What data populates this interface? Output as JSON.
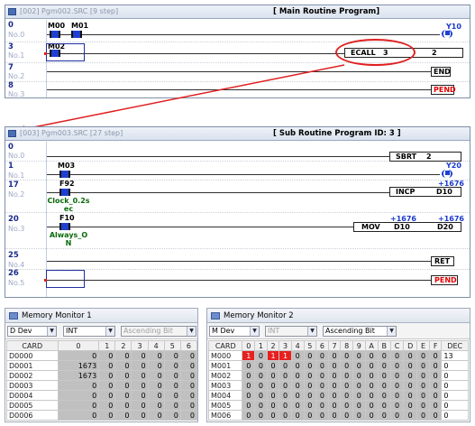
{
  "main_window": {
    "file_label": "[002] Pgm002.SRC [9 step]",
    "title": "[ Main Routine Program]",
    "rungs": [
      {
        "step": "0",
        "no": "No.0"
      },
      {
        "step": "3",
        "no": "No.1"
      },
      {
        "step": "7",
        "no": "No.2"
      },
      {
        "step": "8",
        "no": "No.3"
      }
    ],
    "contacts": {
      "m00": "M00",
      "m01": "M01",
      "m02": "M02"
    },
    "coil_y10": "Y10",
    "ecall": {
      "name": "ECALL",
      "arg1": "3",
      "arg2": "2"
    },
    "end_label": "END",
    "pend_label": "PEND"
  },
  "sub_window": {
    "file_label": "[003] Pgm003.SRC [27 step]",
    "title": "[ Sub Routine Program ID: 3 ]",
    "rungs": [
      {
        "step": "0",
        "no": "No.0"
      },
      {
        "step": "1",
        "no": "No.1"
      },
      {
        "step": "17",
        "no": "No.2"
      },
      {
        "step": "20",
        "no": "No.3"
      },
      {
        "step": "25",
        "no": "No.4"
      },
      {
        "step": "26",
        "no": "No.5"
      }
    ],
    "sbrt": {
      "name": "SBRT",
      "arg": "2"
    },
    "contacts": {
      "m03": "M03",
      "f92": "F92",
      "f10": "F10"
    },
    "f92_comment_1": "Clock_0.2s",
    "f92_comment_2": "ec",
    "f10_comment_1": "Always_O",
    "f10_comment_2": "N",
    "coil_y20": "Y20",
    "incp": {
      "value": "+1676",
      "name": "INCP",
      "operand": "D10"
    },
    "mov": {
      "name": "MOV",
      "op1_value": "+1676",
      "op1": "D10",
      "op2_value": "+1676",
      "op2": "D20"
    },
    "ret_label": "RET",
    "pend_label": "PEND"
  },
  "memory_monitor_1": {
    "title": "Memory Monitor 1",
    "device": "D Dev",
    "type": "INT",
    "order": "Ascending Bit",
    "columns": [
      "CARD",
      "0",
      "1",
      "2",
      "3",
      "4",
      "5",
      "6"
    ],
    "rows": [
      {
        "card": "D0000",
        "values": [
          "0",
          "0",
          "0",
          "0",
          "0",
          "0",
          "0"
        ]
      },
      {
        "card": "D0001",
        "values": [
          "1673",
          "0",
          "0",
          "0",
          "0",
          "0",
          "0"
        ]
      },
      {
        "card": "D0002",
        "values": [
          "1673",
          "0",
          "0",
          "0",
          "0",
          "0",
          "0"
        ]
      },
      {
        "card": "D0003",
        "values": [
          "0",
          "0",
          "0",
          "0",
          "0",
          "0",
          "0"
        ]
      },
      {
        "card": "D0004",
        "values": [
          "0",
          "0",
          "0",
          "0",
          "0",
          "0",
          "0"
        ]
      },
      {
        "card": "D0005",
        "values": [
          "0",
          "0",
          "0",
          "0",
          "0",
          "0",
          "0"
        ]
      },
      {
        "card": "D0006",
        "values": [
          "0",
          "0",
          "0",
          "0",
          "0",
          "0",
          "0"
        ]
      }
    ]
  },
  "memory_monitor_2": {
    "title": "Memory Monitor 2",
    "device": "M Dev",
    "type": "INT",
    "order": "Ascending Bit",
    "columns": [
      "CARD",
      "0",
      "1",
      "2",
      "3",
      "4",
      "5",
      "6",
      "7",
      "8",
      "9",
      "A",
      "B",
      "C",
      "D",
      "E",
      "F",
      "DEC"
    ],
    "rows": [
      {
        "card": "M000",
        "bits": [
          "1",
          "0",
          "1",
          "1",
          "0",
          "0",
          "0",
          "0",
          "0",
          "0",
          "0",
          "0",
          "0",
          "0",
          "0",
          "0"
        ],
        "dec": "13"
      },
      {
        "card": "M001",
        "bits": [
          "0",
          "0",
          "0",
          "0",
          "0",
          "0",
          "0",
          "0",
          "0",
          "0",
          "0",
          "0",
          "0",
          "0",
          "0",
          "0"
        ],
        "dec": "0"
      },
      {
        "card": "M002",
        "bits": [
          "0",
          "0",
          "0",
          "0",
          "0",
          "0",
          "0",
          "0",
          "0",
          "0",
          "0",
          "0",
          "0",
          "0",
          "0",
          "0"
        ],
        "dec": "0"
      },
      {
        "card": "M003",
        "bits": [
          "0",
          "0",
          "0",
          "0",
          "0",
          "0",
          "0",
          "0",
          "0",
          "0",
          "0",
          "0",
          "0",
          "0",
          "0",
          "0"
        ],
        "dec": "0"
      },
      {
        "card": "M004",
        "bits": [
          "0",
          "0",
          "0",
          "0",
          "0",
          "0",
          "0",
          "0",
          "0",
          "0",
          "0",
          "0",
          "0",
          "0",
          "0",
          "0"
        ],
        "dec": "0"
      },
      {
        "card": "M005",
        "bits": [
          "0",
          "0",
          "0",
          "0",
          "0",
          "0",
          "0",
          "0",
          "0",
          "0",
          "0",
          "0",
          "0",
          "0",
          "0",
          "0"
        ],
        "dec": "0"
      },
      {
        "card": "M006",
        "bits": [
          "0",
          "0",
          "0",
          "0",
          "0",
          "0",
          "0",
          "0",
          "0",
          "0",
          "0",
          "0",
          "0",
          "0",
          "0",
          "0"
        ],
        "dec": "0"
      }
    ]
  },
  "colors": {
    "accent": "#1f3fd0",
    "highlight": "#e02020",
    "pend": "#e00000",
    "comment": "#0a6a0a"
  }
}
